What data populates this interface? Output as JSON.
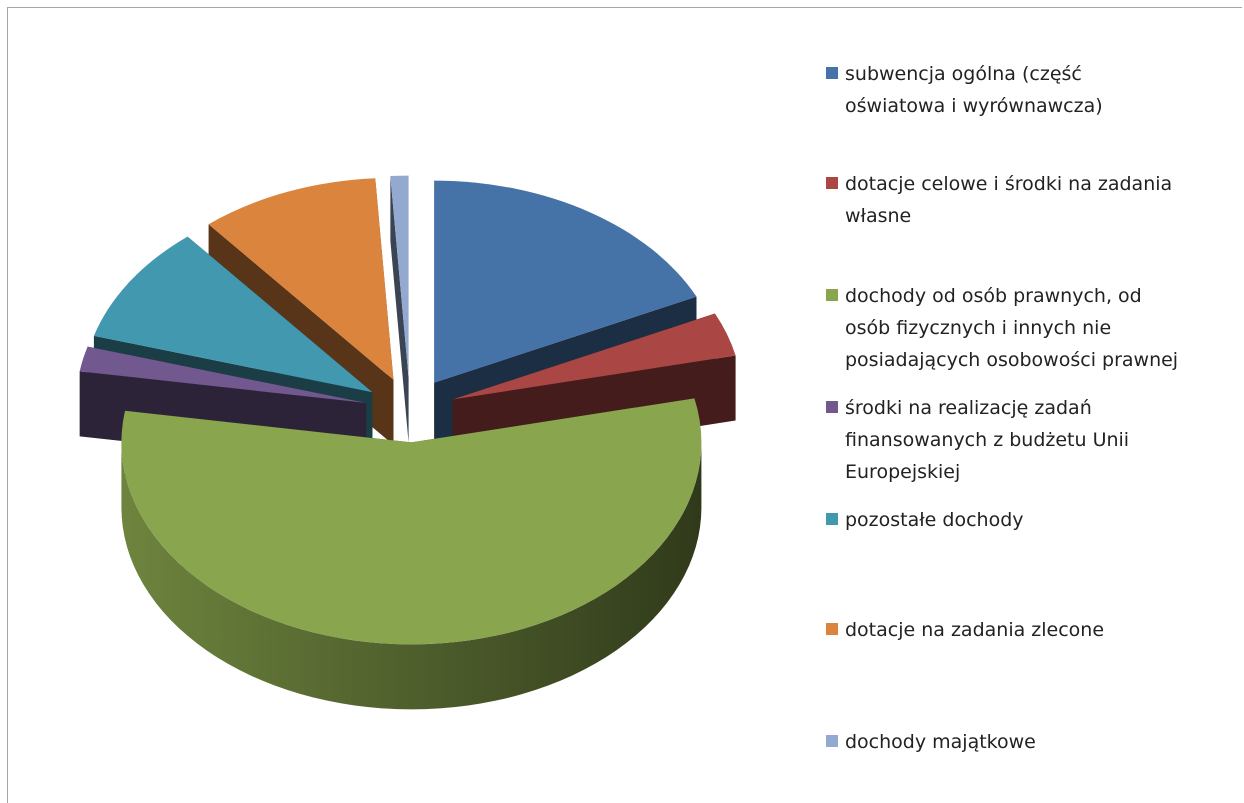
{
  "chart_data": {
    "type": "pie",
    "style": "3d-exploded",
    "title": "",
    "legend_position": "right",
    "slices": [
      {
        "label": "subwencja ogólna (część\noświatowa i wyrównawcza)",
        "value": 18.0,
        "color": "#4572a7"
      },
      {
        "label": "dotacje celowe i środki  na zadania\nwłasne",
        "value": 3.5,
        "color": "#aa4643"
      },
      {
        "label": "dochody od osób prawnych, od\nosób fizycznych i innych nie\nposiadających osobowości prawnej",
        "value": 56.0,
        "color": "#89a54e"
      },
      {
        "label": "środki na realizację zadań\nfinansowanych z budżetu Unii\nEuropejskiej",
        "value": 2.0,
        "color": "#71588f"
      },
      {
        "label": "pozostałe dochody",
        "value": 9.5,
        "color": "#4198af"
      },
      {
        "label": "dotacje na zadania zlecone",
        "value": 10.0,
        "color": "#db843d"
      },
      {
        "label": "dochody majątkowe",
        "value": 1.0,
        "color": "#93a9cf"
      }
    ]
  }
}
